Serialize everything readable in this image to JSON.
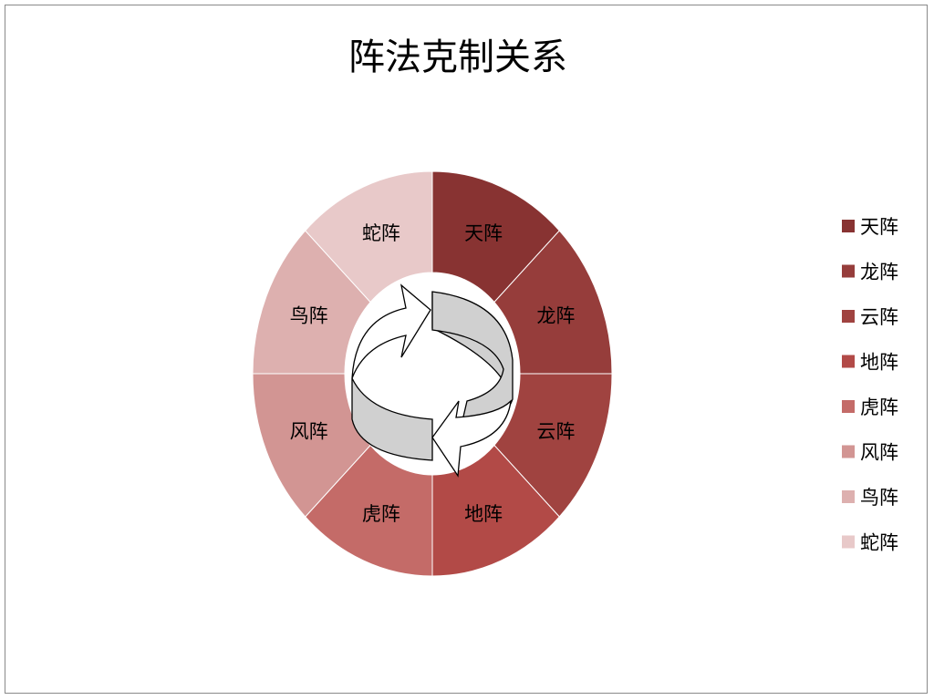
{
  "chart_data": {
    "type": "pie",
    "donut": true,
    "title": "阵法克制关系",
    "categories": [
      "天阵",
      "龙阵",
      "云阵",
      "地阵",
      "虎阵",
      "风阵",
      "鸟阵",
      "蛇阵"
    ],
    "values": [
      1,
      1,
      1,
      1,
      1,
      1,
      1,
      1
    ],
    "colors": [
      "#883332",
      "#963d3b",
      "#a04340",
      "#b24a47",
      "#c46b68",
      "#d29593",
      "#ddb0af",
      "#e8c9c9"
    ],
    "data_labels": "category name",
    "legend_position": "right",
    "center_graphic": "circular-arrows-icon"
  }
}
